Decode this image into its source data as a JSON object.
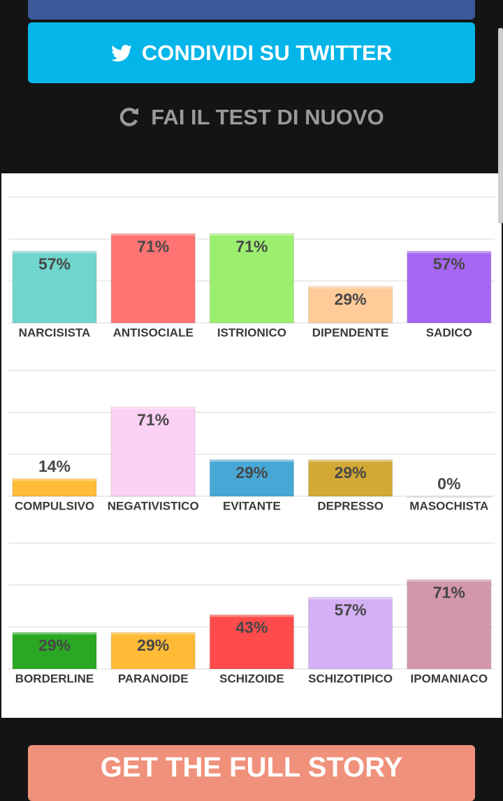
{
  "header": {
    "twitter_button": "CONDIVIDI SU TWITTER",
    "retake_button": "FAI IL TEST DI NUOVO"
  },
  "chart_data": [
    {
      "type": "bar",
      "categories": [
        "NARCISISTA",
        "ANTISOCIALE",
        "ISTRIONICO",
        "DIPENDENTE",
        "SADICO"
      ],
      "values": [
        57,
        71,
        71,
        29,
        57
      ],
      "value_labels": [
        "57%",
        "71%",
        "71%",
        "29%",
        "57%"
      ],
      "colors": [
        "#6fd6cd",
        "#ff7373",
        "#9cef6e",
        "#ffcb98",
        "#a766f4"
      ],
      "ylim": [
        0,
        100
      ],
      "yticks": [
        0,
        33.3,
        66.7,
        100
      ],
      "grid": true,
      "tick_labels": false
    },
    {
      "type": "bar",
      "categories": [
        "COMPULSIVO",
        "NEGATIVISTICO",
        "EVITANTE",
        "DEPRESSO",
        "MASOCHISTA"
      ],
      "values": [
        14,
        71,
        29,
        29,
        0
      ],
      "value_labels": [
        "14%",
        "71%",
        "29%",
        "29%",
        "0%"
      ],
      "colors": [
        "#ffbc36",
        "#fbd1f4",
        "#47a8d6",
        "#d3a935",
        "#cfe0ea"
      ],
      "ylim": [
        0,
        100
      ],
      "yticks": [
        0,
        33.3,
        66.7,
        100
      ],
      "grid": true,
      "tick_labels": false
    },
    {
      "type": "bar",
      "categories": [
        "BORDERLINE",
        "PARANOIDE",
        "SCHIZOIDE",
        "SCHIZOTIPICO",
        "IPOMANIACO"
      ],
      "values": [
        29,
        29,
        43,
        57,
        71
      ],
      "value_labels": [
        "29%",
        "29%",
        "43%",
        "57%",
        "71%"
      ],
      "colors": [
        "#2aa823",
        "#ffbb36",
        "#ff4b4b",
        "#d4b1f5",
        "#d297a8"
      ],
      "ylim": [
        0,
        100
      ],
      "yticks": [
        0,
        33.3,
        66.7,
        100
      ],
      "grid": true,
      "tick_labels": false
    }
  ],
  "footer": {
    "story_button": "GET THE FULL STORY"
  }
}
